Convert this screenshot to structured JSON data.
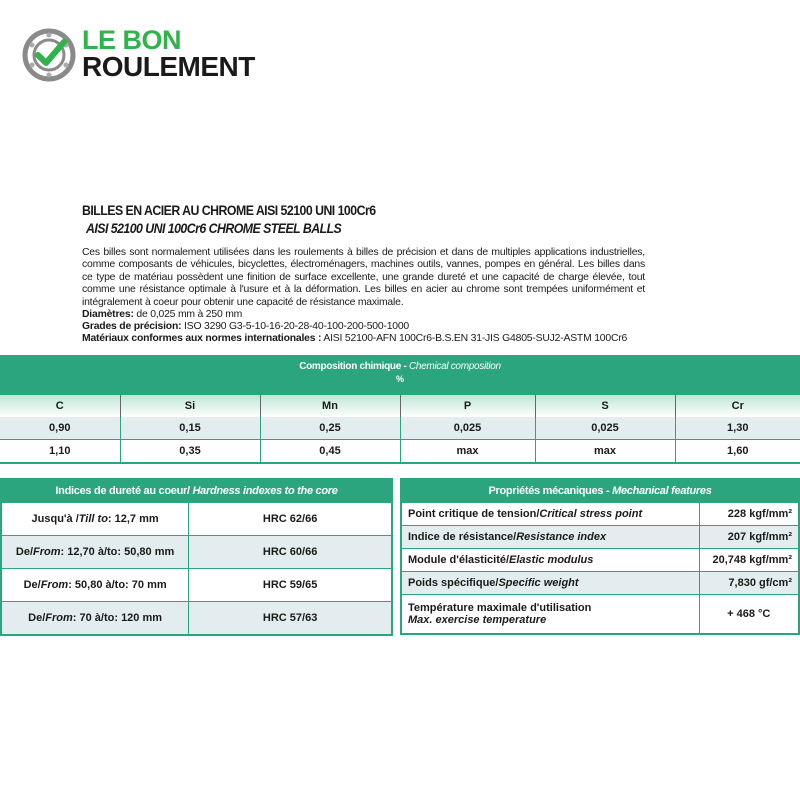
{
  "logo": {
    "line1": "LE BON",
    "line2": "ROULEMENT",
    "brand_green": "#2fb34a"
  },
  "title": {
    "fr": "BILLES EN ACIER AU CHROME AISI 52100 UNI 100Cr6",
    "en": "AISI 52100 UNI 100Cr6 CHROME STEEL BALLS"
  },
  "description": "Ces billes sont normalement utilisées dans les roulements à billes de précision et dans de multiples applications industrielles, comme composants de véhicules, bicyclettes, électroménagers, machines outils, vannes, pompes en général. Les billes dans ce type de matériau possèdent une finition de surface excellente, une grande dureté et une capacité de charge élevée, tout comme une résistance optimale à l'usure et à la déformation. Les billes en acier au chrome sont trempées uniformément et intégralement à coeur pour obtenir une capacité de résistance maximale.",
  "specs": [
    {
      "label": "Diamètres:",
      "value": " de 0,025 mm à 250 mm"
    },
    {
      "label": "Grades de précision:",
      "value": " ISO 3290 G3-5-10-16-20-28-40-100-200-500-1000"
    },
    {
      "label": "Matériaux conformes aux normes internationales :",
      "value": " AISI 52100-AFN 100Cr6-B.S.EN 31-JIS G4805-SUJ2-ASTM 100Cr6"
    }
  ],
  "composition": {
    "title_fr": "Composition chimique - ",
    "title_en": "Chemical composition",
    "unit": "%",
    "headers": [
      "C",
      "Si",
      "Mn",
      "P",
      "S",
      "Cr"
    ],
    "rows": [
      [
        "0,90",
        "0,15",
        "0,25",
        "0,025",
        "0,025",
        "1,30"
      ],
      [
        "1,10",
        "0,35",
        "0,45",
        "max",
        "max",
        "1,60"
      ]
    ]
  },
  "hardness": {
    "title_fr": "Indices de dureté au coeur/ ",
    "title_en": "Hardness indexes to the core",
    "rows": [
      {
        "a": "Jusqu'à /",
        "a_it": "Till to",
        "b": ":  12,7 mm",
        "value": "HRC 62/66"
      },
      {
        "a": "De/",
        "a_it": "From",
        "b": ": 12,70  à/to: 50,80 mm",
        "value": "HRC 60/66"
      },
      {
        "a": "De/",
        "a_it": "From",
        "b": ": 50,80  à/to: 70 mm",
        "value": "HRC 59/65"
      },
      {
        "a": "De/",
        "a_it": "From",
        "b": ": 70  à/to: 120 mm",
        "value": "HRC 57/63"
      }
    ]
  },
  "mechanical": {
    "title_fr": "Propriétés mécaniques - ",
    "title_en": "Mechanical features",
    "rows": [
      {
        "fr": "Point critique de tension/",
        "en": "Critical stress point",
        "value": "228 kgf/mm²"
      },
      {
        "fr": "Indice de résistance/",
        "en": "Resistance index",
        "value": "207 kgf/mm²"
      },
      {
        "fr": "Module d'élasticité/",
        "en": "Elastic modulus",
        "value": "20,748 kgf/mm²"
      },
      {
        "fr": "Poids spécifique/",
        "en": "Specific weight",
        "value": "7,830 gf/cm²"
      },
      {
        "fr": "Température maximale d'utilisation",
        "en": "Max. exercise temperature",
        "value": "+ 468 °C"
      }
    ]
  },
  "colors": {
    "table_green": "#2aa57d",
    "row_tint": "#e3edf0"
  }
}
